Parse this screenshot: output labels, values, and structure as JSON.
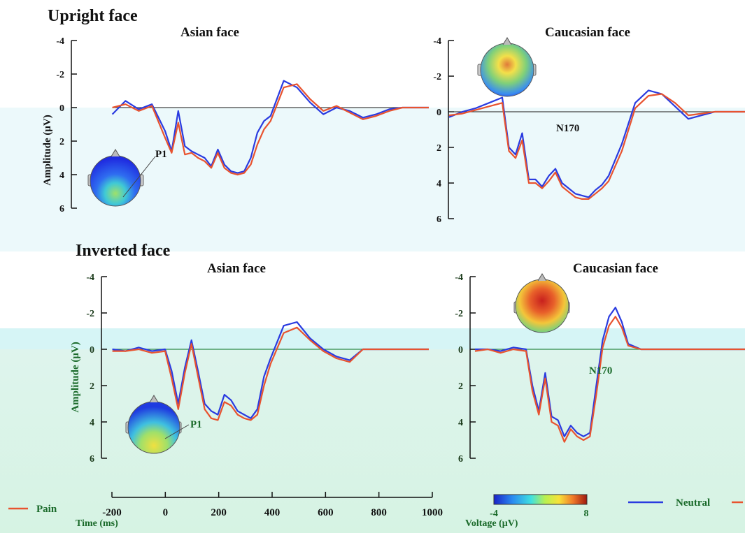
{
  "sections": [
    {
      "title": "Upright face",
      "panels": [
        {
          "title": "Asian face",
          "component": "P1"
        },
        {
          "title": "Caucasian face",
          "component": "N170"
        }
      ]
    },
    {
      "title": "Inverted face",
      "panels": [
        {
          "title": "Asian face",
          "component": "P1"
        },
        {
          "title": "Caucasian face",
          "component": "N170"
        }
      ]
    }
  ],
  "legend": {
    "pain": "Pain",
    "neutral": "Neutral"
  },
  "colors": {
    "pain": "#e8532f",
    "neutral": "#2a3be0"
  },
  "xaxis": {
    "label": "Time (ms)",
    "ticks": [
      "-200",
      "0",
      "200",
      "400",
      "600",
      "800",
      "1000"
    ]
  },
  "yaxis": {
    "label": "Amplitude (μV)",
    "ticks": [
      "-4",
      "-2",
      "0",
      "2",
      "4",
      "6"
    ]
  },
  "colorbar": {
    "label": "Voltage (μV)",
    "min": "-4",
    "max": "8"
  },
  "chart_data": [
    {
      "type": "line",
      "title": "Asian face",
      "section": "Upright face",
      "component": "P1",
      "xlabel": "Time (ms)",
      "ylabel": "Amplitude (μV)",
      "xlim": [
        -200,
        1000
      ],
      "ylim": [
        -4,
        6
      ],
      "y_inverted": true,
      "x": [
        -200,
        -150,
        -100,
        -50,
        0,
        25,
        50,
        75,
        100,
        125,
        150,
        175,
        200,
        225,
        250,
        275,
        300,
        325,
        350,
        375,
        400,
        450,
        500,
        550,
        600,
        650,
        700,
        750,
        800,
        850,
        900,
        950,
        1000
      ],
      "series": [
        {
          "name": "Neutral",
          "values": [
            0.4,
            -0.4,
            0.1,
            -0.2,
            1.4,
            2.6,
            0.2,
            2.3,
            2.6,
            2.8,
            3.0,
            3.5,
            2.5,
            3.4,
            3.8,
            3.9,
            3.8,
            3.0,
            1.5,
            0.8,
            0.5,
            -1.6,
            -1.2,
            -0.3,
            0.4,
            0.0,
            0.2,
            0.6,
            0.4,
            0.1,
            0.0,
            0.0,
            0.0
          ]
        },
        {
          "name": "Pain",
          "values": [
            0.0,
            -0.2,
            0.2,
            -0.1,
            1.8,
            2.7,
            0.9,
            2.8,
            2.7,
            3.0,
            3.2,
            3.6,
            2.7,
            3.6,
            3.9,
            4.0,
            3.9,
            3.4,
            2.2,
            1.3,
            0.8,
            -1.2,
            -1.4,
            -0.5,
            0.2,
            -0.1,
            0.3,
            0.7,
            0.5,
            0.2,
            0.0,
            0.0,
            0.0
          ]
        }
      ]
    },
    {
      "type": "line",
      "title": "Caucasian face",
      "section": "Upright face",
      "component": "N170",
      "xlabel": "Time (ms)",
      "ylabel": "Amplitude (μV)",
      "xlim": [
        -200,
        1000
      ],
      "ylim": [
        -4,
        6
      ],
      "y_inverted": true,
      "x": [
        -200,
        -150,
        -100,
        -50,
        0,
        25,
        50,
        75,
        100,
        125,
        150,
        175,
        200,
        225,
        250,
        275,
        300,
        325,
        350,
        375,
        400,
        450,
        500,
        550,
        600,
        650,
        700,
        750,
        800,
        850,
        900,
        950,
        1000
      ],
      "series": [
        {
          "name": "Neutral",
          "values": [
            0.3,
            0.0,
            -0.2,
            -0.5,
            -0.8,
            2.0,
            2.4,
            1.2,
            3.8,
            3.8,
            4.2,
            3.6,
            3.2,
            4.0,
            4.3,
            4.6,
            4.7,
            4.8,
            4.4,
            4.1,
            3.6,
            1.8,
            -0.5,
            -1.2,
            -1.0,
            -0.3,
            0.4,
            0.2,
            0.0,
            0.0,
            0.0,
            0.0,
            0.0
          ]
        },
        {
          "name": "Pain",
          "values": [
            0.2,
            0.1,
            -0.1,
            -0.3,
            -0.5,
            2.2,
            2.6,
            1.6,
            4.0,
            4.0,
            4.3,
            3.9,
            3.4,
            4.2,
            4.5,
            4.8,
            4.9,
            4.9,
            4.6,
            4.3,
            3.9,
            2.2,
            -0.2,
            -0.9,
            -1.0,
            -0.5,
            0.2,
            0.1,
            0.0,
            0.0,
            0.0,
            0.0,
            0.0
          ]
        }
      ]
    },
    {
      "type": "line",
      "title": "Asian face",
      "section": "Inverted face",
      "component": "P1",
      "xlabel": "Time (ms)",
      "ylabel": "Amplitude (μV)",
      "xlim": [
        -200,
        1000
      ],
      "ylim": [
        -4,
        6
      ],
      "y_inverted": true,
      "x": [
        -200,
        -150,
        -100,
        -50,
        0,
        25,
        50,
        75,
        100,
        125,
        150,
        175,
        200,
        225,
        250,
        275,
        300,
        325,
        350,
        375,
        400,
        450,
        500,
        550,
        600,
        650,
        700,
        750,
        800,
        850,
        900,
        950,
        1000
      ],
      "series": [
        {
          "name": "Neutral",
          "values": [
            0.0,
            0.1,
            -0.1,
            0.1,
            0.0,
            1.2,
            3.0,
            1.0,
            -0.5,
            1.2,
            3.0,
            3.4,
            3.6,
            2.5,
            2.8,
            3.4,
            3.6,
            3.8,
            3.3,
            1.5,
            0.5,
            -1.3,
            -1.5,
            -0.6,
            0.0,
            0.4,
            0.6,
            0.0,
            0.0,
            0.0,
            0.0,
            0.0,
            0.0
          ]
        },
        {
          "name": "Pain",
          "values": [
            0.1,
            0.1,
            0.0,
            0.2,
            0.1,
            1.6,
            3.3,
            1.3,
            -0.3,
            1.5,
            3.3,
            3.8,
            3.9,
            2.9,
            3.1,
            3.6,
            3.8,
            3.9,
            3.6,
            2.0,
            0.8,
            -0.9,
            -1.2,
            -0.5,
            0.1,
            0.5,
            0.7,
            0.0,
            0.0,
            0.0,
            0.0,
            0.0,
            0.0
          ]
        }
      ]
    },
    {
      "type": "line",
      "title": "Caucasian face",
      "section": "Inverted face",
      "component": "N170",
      "xlabel": "Time (ms)",
      "ylabel": "Amplitude (μV)",
      "xlim": [
        -200,
        1000
      ],
      "ylim": [
        -4,
        6
      ],
      "y_inverted": true,
      "x": [
        -200,
        -150,
        -100,
        -50,
        0,
        25,
        50,
        75,
        100,
        125,
        150,
        175,
        200,
        225,
        250,
        275,
        300,
        325,
        350,
        375,
        400,
        450,
        500,
        550,
        600,
        650,
        700,
        750,
        800,
        850,
        900,
        950,
        1000
      ],
      "series": [
        {
          "name": "Neutral",
          "values": [
            0.0,
            0.0,
            0.1,
            -0.1,
            0.0,
            2.0,
            3.4,
            1.3,
            3.7,
            3.9,
            4.8,
            4.2,
            4.6,
            4.8,
            4.6,
            2.0,
            -0.5,
            -1.8,
            -2.3,
            -1.5,
            -0.3,
            0.0,
            0.0,
            0.0,
            0.0,
            0.0,
            0.0,
            0.0,
            0.0,
            0.0,
            0.0,
            0.0,
            0.0
          ]
        },
        {
          "name": "Pain",
          "values": [
            0.1,
            0.0,
            0.2,
            0.0,
            0.1,
            2.3,
            3.6,
            1.6,
            4.0,
            4.2,
            5.1,
            4.4,
            4.8,
            5.0,
            4.8,
            2.5,
            -0.1,
            -1.3,
            -1.8,
            -1.2,
            -0.2,
            0.0,
            0.0,
            0.0,
            0.0,
            0.0,
            0.0,
            0.0,
            0.0,
            0.0,
            0.0,
            0.0,
            0.0
          ]
        }
      ]
    }
  ]
}
